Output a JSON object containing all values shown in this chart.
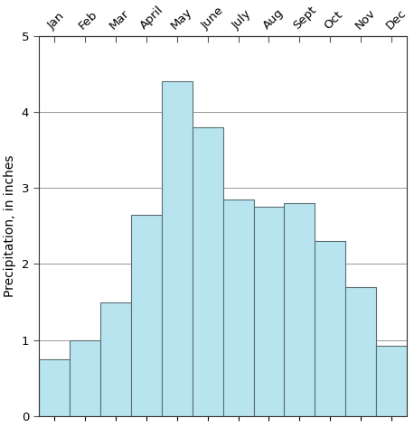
{
  "months": [
    "Jan",
    "Feb",
    "Mar",
    "April",
    "May",
    "June",
    "July",
    "Aug",
    "Sept",
    "Oct",
    "Nov",
    "Dec"
  ],
  "values": [
    0.75,
    1.0,
    1.5,
    2.65,
    4.4,
    3.8,
    2.85,
    2.75,
    2.8,
    2.3,
    1.7,
    0.92
  ],
  "bar_color": "#b8e4f0",
  "bar_edge_color": "#5a6e75",
  "ylabel": "Precipitation, in inches",
  "ylim": [
    0,
    5
  ],
  "yticks": [
    0,
    1,
    2,
    3,
    4,
    5
  ],
  "grid_color": "#888888",
  "background_color": "#ffffff",
  "ylabel_fontsize": 10,
  "tick_label_fontsize": 9.5,
  "bar_width": 1.0
}
